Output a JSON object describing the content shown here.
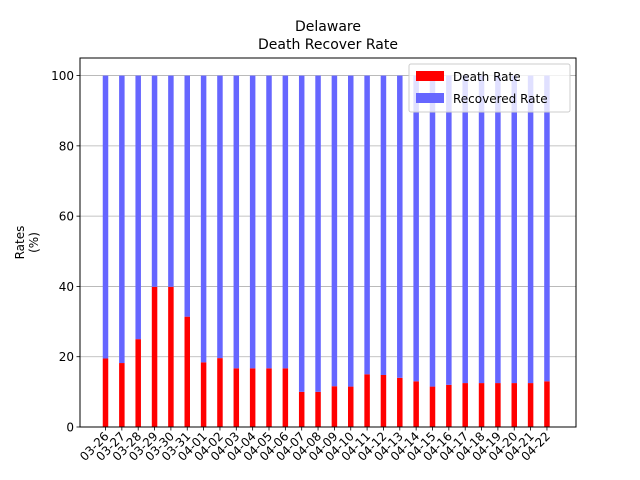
{
  "chart_data": {
    "type": "bar",
    "stacked": true,
    "title": "Delaware",
    "subtitle": "Death Recover Rate",
    "xlabel": "",
    "ylabel": "Rates\n(%)",
    "ylim": [
      0,
      105
    ],
    "yticks": [
      0,
      20,
      40,
      60,
      80,
      100
    ],
    "grid": "horizontal",
    "legend_position": "top-right",
    "categories": [
      "03-26",
      "03-27",
      "03-28",
      "03-29",
      "03-30",
      "03-31",
      "04-01",
      "04-02",
      "04-03",
      "04-04",
      "04-05",
      "04-06",
      "04-07",
      "04-08",
      "04-09",
      "04-10",
      "04-11",
      "04-12",
      "04-13",
      "04-14",
      "04-15",
      "04-16",
      "04-17",
      "04-18",
      "04-19",
      "04-20",
      "04-21",
      "04-22"
    ],
    "series": [
      {
        "name": "Death Rate",
        "color": "#ff0000",
        "values": [
          19.5,
          18.2,
          25.0,
          39.9,
          39.9,
          31.4,
          18.4,
          19.6,
          16.7,
          16.7,
          16.7,
          16.7,
          10.0,
          10.0,
          11.6,
          11.5,
          15.0,
          14.8,
          14.0,
          13.0,
          11.5,
          12.0,
          12.5,
          12.5,
          12.5,
          12.5,
          12.5,
          13.0
        ]
      },
      {
        "name": "Recovered Rate",
        "color": "#6666ff",
        "values": [
          80.5,
          81.8,
          75.0,
          60.1,
          60.1,
          68.6,
          81.6,
          80.4,
          83.3,
          83.3,
          83.3,
          83.3,
          90.0,
          90.0,
          88.4,
          88.5,
          85.0,
          85.2,
          86.0,
          87.0,
          88.5,
          88.0,
          87.5,
          87.5,
          87.5,
          87.5,
          87.5,
          87.0
        ]
      }
    ]
  }
}
